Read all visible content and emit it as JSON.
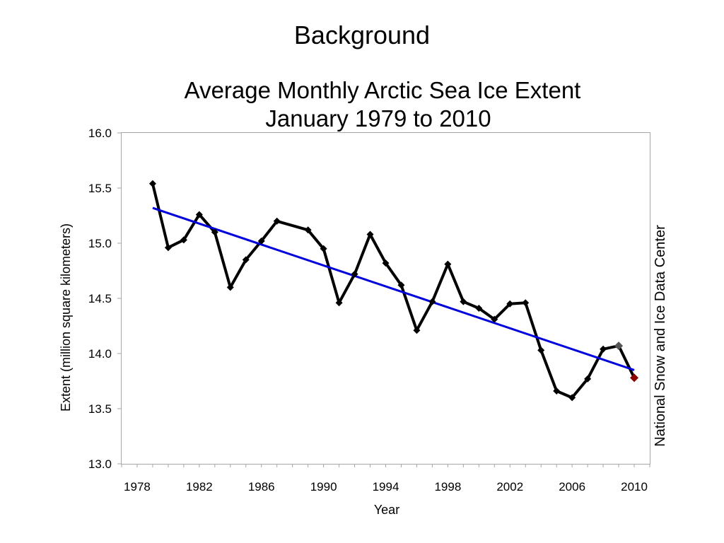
{
  "slide": {
    "title": "Background"
  },
  "chart_data": {
    "type": "line",
    "title_line1": "Average Monthly Arctic Sea Ice Extent",
    "title_line2": "January 1979 to 2010",
    "xlabel": "Year",
    "ylabel": "Extent (million square kilometers)",
    "credit": "National Snow and Ice Data Center",
    "xlim": [
      1977,
      2011
    ],
    "ylim": [
      13.0,
      16.0
    ],
    "x_ticks": [
      "1978",
      "1982",
      "1986",
      "1990",
      "1994",
      "1998",
      "2002",
      "2006",
      "2010"
    ],
    "y_ticks": [
      "13.0",
      "13.5",
      "14.0",
      "14.5",
      "15.0",
      "15.5",
      "16.0"
    ],
    "grid": false,
    "legend": "none",
    "series": [
      {
        "color": "#000000",
        "marker": "diamond",
        "x": [
          1979,
          1980,
          1981,
          1982,
          1983,
          1984,
          1985,
          1986,
          1987,
          1989,
          1990,
          1991,
          1992,
          1993,
          1994,
          1995,
          1996,
          1997,
          1998,
          1999,
          2000,
          2001,
          2002,
          2003,
          2004,
          2005,
          2006,
          2007,
          2008,
          2009,
          2010
        ],
        "y": [
          15.54,
          14.96,
          15.03,
          15.26,
          15.1,
          14.6,
          14.85,
          15.02,
          15.2,
          15.12,
          14.95,
          14.46,
          14.72,
          15.08,
          14.82,
          14.62,
          14.21,
          14.47,
          14.81,
          14.47,
          14.41,
          14.31,
          14.45,
          14.46,
          14.03,
          13.66,
          13.6,
          13.77,
          14.04,
          14.07,
          13.78
        ],
        "highlights": [
          {
            "x": 2009,
            "color": "#555555"
          },
          {
            "x": 2010,
            "color": "#8b0000"
          }
        ]
      },
      {
        "type": "trend",
        "color": "#0000dd",
        "x": [
          1979,
          2010
        ],
        "y": [
          15.32,
          13.85
        ]
      }
    ]
  }
}
